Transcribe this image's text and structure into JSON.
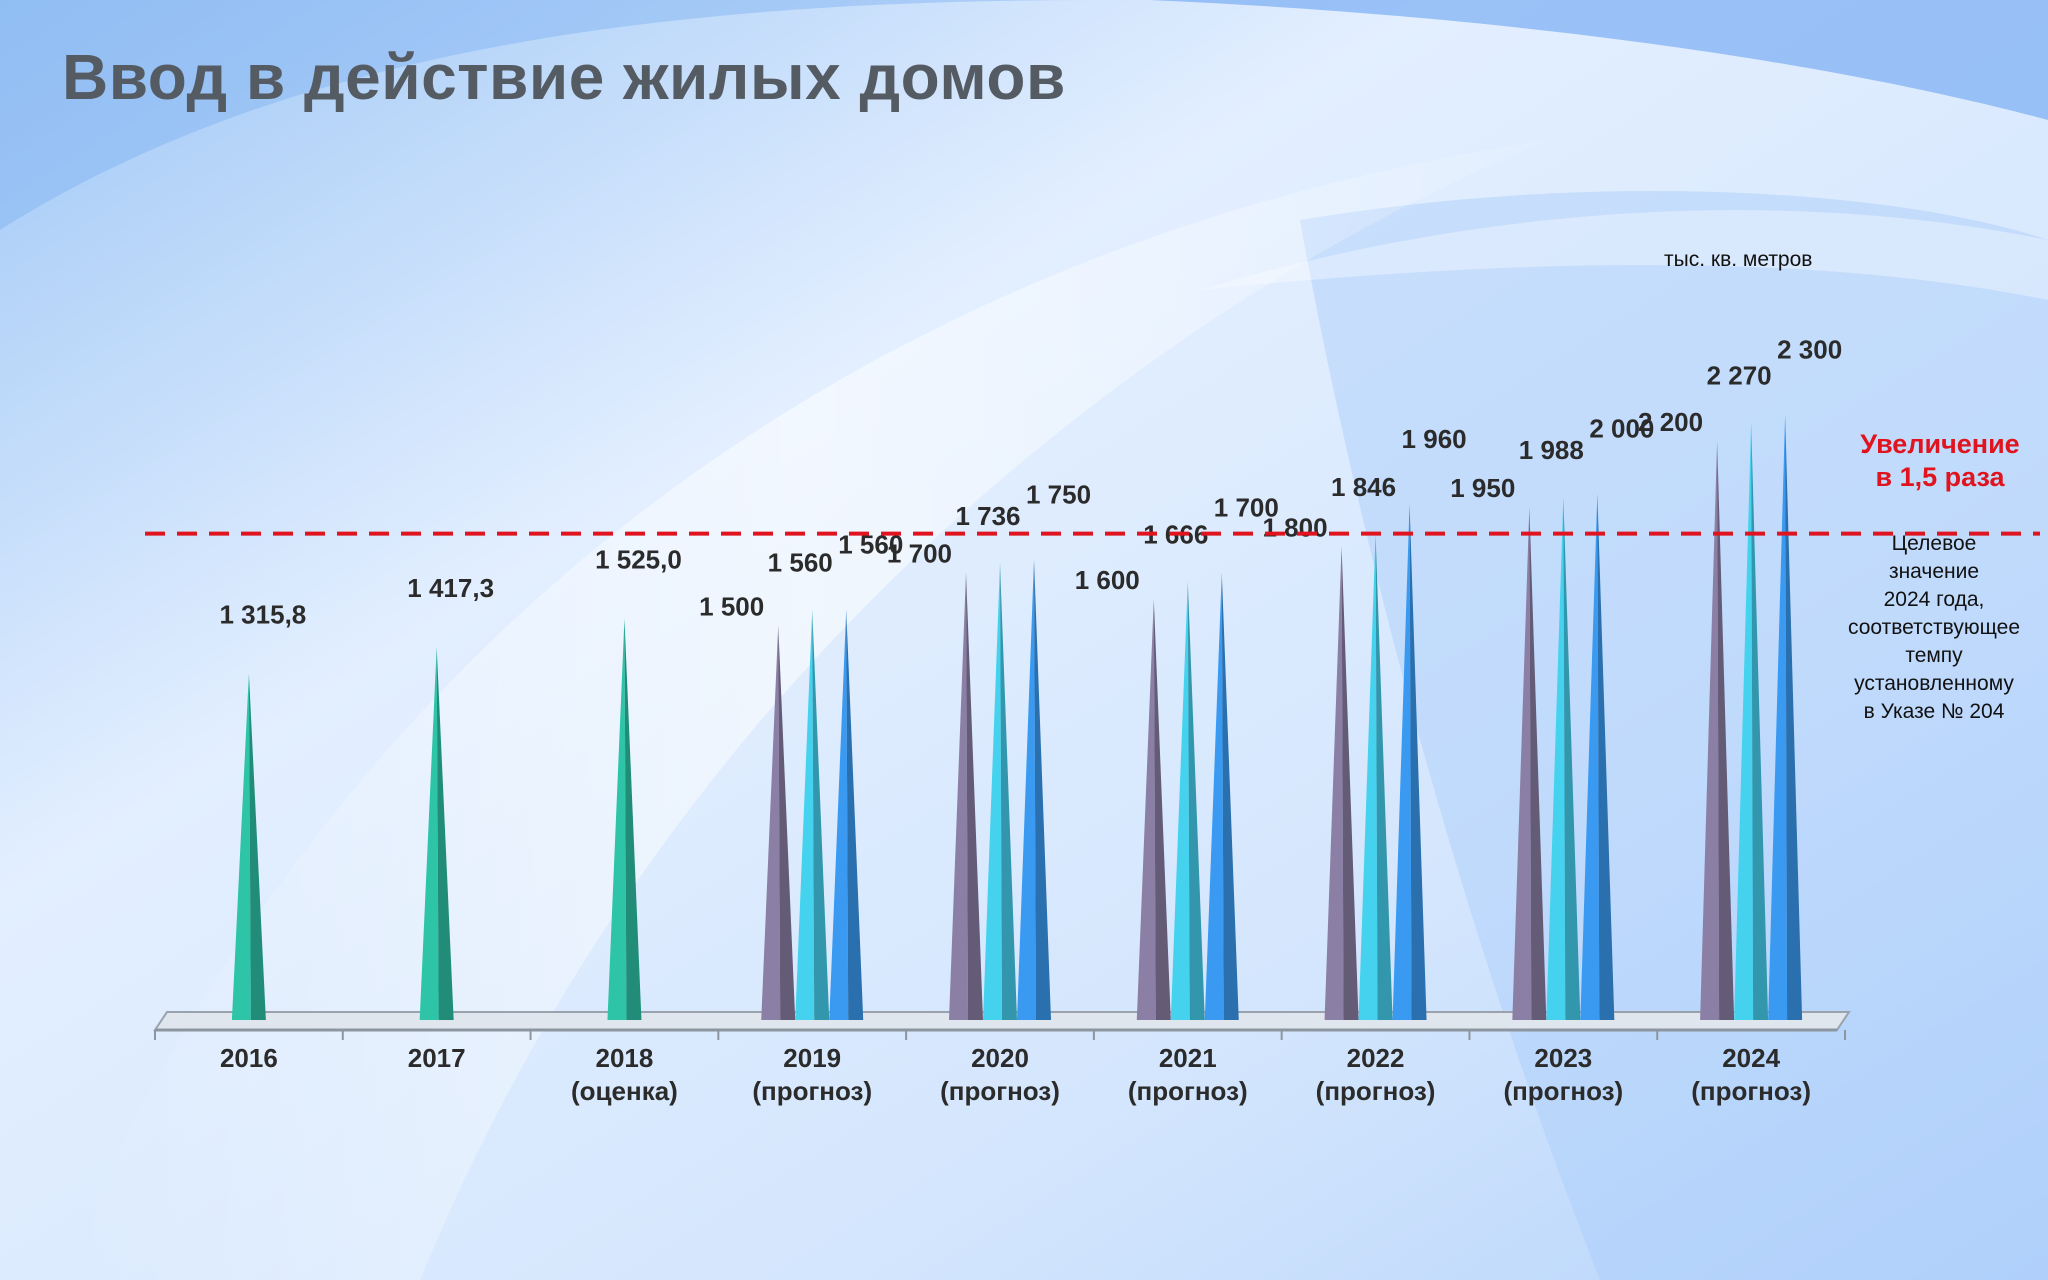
{
  "title": "Ввод в действие жилых домов",
  "units": "тыс. кв. метров",
  "callout": {
    "line1": "Увеличение",
    "line2": "в 1,5 раза"
  },
  "note": [
    "Целевое",
    "значение",
    "2024 года,",
    "соответствующее",
    "темпу",
    "установленному",
    "в Указе № 204"
  ],
  "colors": {
    "actual": "#2ec4a8",
    "series1": "#8b7fa5",
    "series2": "#45d2ef",
    "series3": "#3a9af2",
    "target_line": "#e0141e"
  },
  "chart_data": {
    "type": "bar",
    "bar_style": "cone",
    "title": "Ввод в действие жилых домов",
    "ylabel": "",
    "ylim": [
      0,
      2800
    ],
    "target_line": 2000,
    "categories": [
      {
        "year": "2016",
        "note": ""
      },
      {
        "year": "2017",
        "note": ""
      },
      {
        "year": "2018",
        "note": "(оценка)"
      },
      {
        "year": "2019",
        "note": "(прогноз)"
      },
      {
        "year": "2020",
        "note": "(прогноз)"
      },
      {
        "year": "2021",
        "note": "(прогноз)"
      },
      {
        "year": "2022",
        "note": "(прогноз)"
      },
      {
        "year": "2023",
        "note": "(прогноз)"
      },
      {
        "year": "2024",
        "note": "(прогноз)"
      }
    ],
    "groups": [
      [
        {
          "value": 1315.8,
          "label": "1 315,8",
          "series": "actual"
        }
      ],
      [
        {
          "value": 1417.3,
          "label": "1 417,3",
          "series": "actual"
        }
      ],
      [
        {
          "value": 1525.0,
          "label": "1 525,0",
          "series": "actual"
        }
      ],
      [
        {
          "value": 1500,
          "label": "1 500",
          "series": "series1"
        },
        {
          "value": 1560,
          "label": "1 560",
          "series": "series2"
        },
        {
          "value": 1560,
          "label": "1 560",
          "series": "series3"
        }
      ],
      [
        {
          "value": 1700,
          "label": "1 700",
          "series": "series1"
        },
        {
          "value": 1736,
          "label": "1 736",
          "series": "series2"
        },
        {
          "value": 1750,
          "label": "1 750",
          "series": "series3"
        }
      ],
      [
        {
          "value": 1600,
          "label": "1 600",
          "series": "series1"
        },
        {
          "value": 1666,
          "label": "1 666",
          "series": "series2"
        },
        {
          "value": 1700,
          "label": "1 700",
          "series": "series3"
        }
      ],
      [
        {
          "value": 1800,
          "label": "1 800",
          "series": "series1"
        },
        {
          "value": 1846,
          "label": "1 846",
          "series": "series2"
        },
        {
          "value": 1960,
          "label": "1 960",
          "series": "series3"
        }
      ],
      [
        {
          "value": 1950,
          "label": "1 950",
          "series": "series1"
        },
        {
          "value": 1988,
          "label": "1 988",
          "series": "series2"
        },
        {
          "value": 2000,
          "label": "2 000",
          "series": "series3"
        }
      ],
      [
        {
          "value": 2200,
          "label": "2 200",
          "series": "series1"
        },
        {
          "value": 2270,
          "label": "2 270",
          "series": "series2"
        },
        {
          "value": 2300,
          "label": "2 300",
          "series": "series3"
        }
      ]
    ]
  }
}
